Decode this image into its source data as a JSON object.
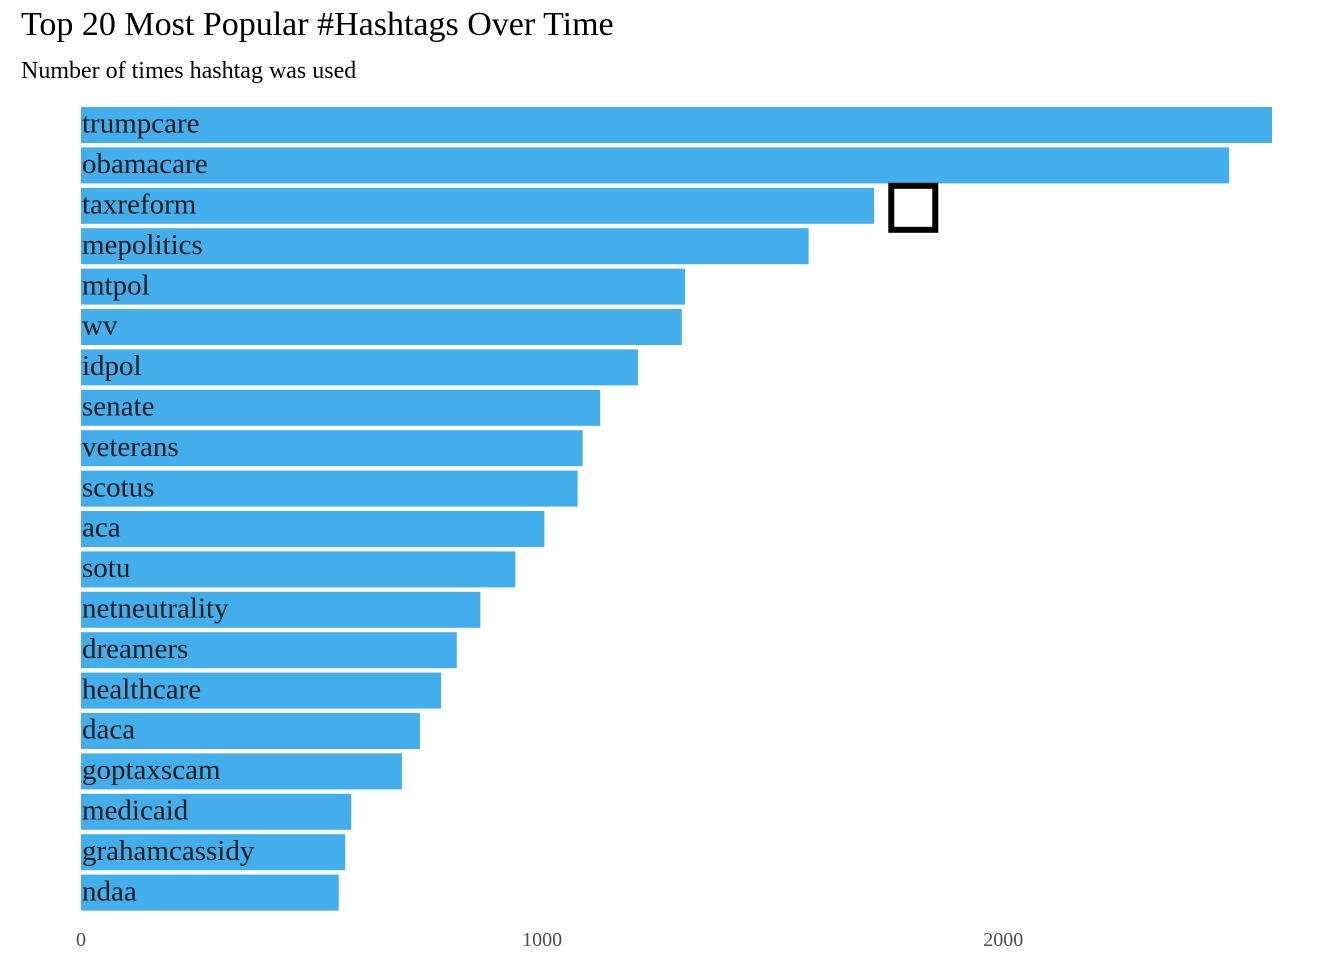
{
  "title": "Top 20 Most Popular #Hashtags Over Time",
  "subtitle": "Number of times hashtag was used",
  "colors": {
    "bar": "#42aeeb",
    "label": "#1a1a1a",
    "tick": "#4d4d4d",
    "marker": "#000000"
  },
  "chart_data": {
    "type": "bar",
    "orientation": "horizontal",
    "title": "Top 20 Most Popular #Hashtags Over Time",
    "subtitle": "Number of times hashtag was used",
    "categories": [
      "trumpcare",
      "obamacare",
      "taxreform",
      "mepolitics",
      "mtpol",
      "wv",
      "idpol",
      "senate",
      "veterans",
      "scotus",
      "aca",
      "sotu",
      "netneutrality",
      "dreamers",
      "healthcare",
      "daca",
      "goptaxscam",
      "medicaid",
      "grahamcassidy",
      "ndaa"
    ],
    "values": [
      2583,
      2490,
      1720,
      1578,
      1310,
      1303,
      1208,
      1126,
      1088,
      1077,
      1005,
      942,
      866,
      815,
      781,
      735,
      696,
      586,
      573,
      559
    ],
    "xticks": [
      "0",
      "1000",
      "2000"
    ],
    "xtick_values": [
      0,
      1000,
      2000
    ],
    "xlim": [
      0,
      2600
    ],
    "grid": false,
    "legend": "none",
    "marker": {
      "shape": "hollow-square",
      "x": 1805,
      "category": "taxreform"
    }
  }
}
